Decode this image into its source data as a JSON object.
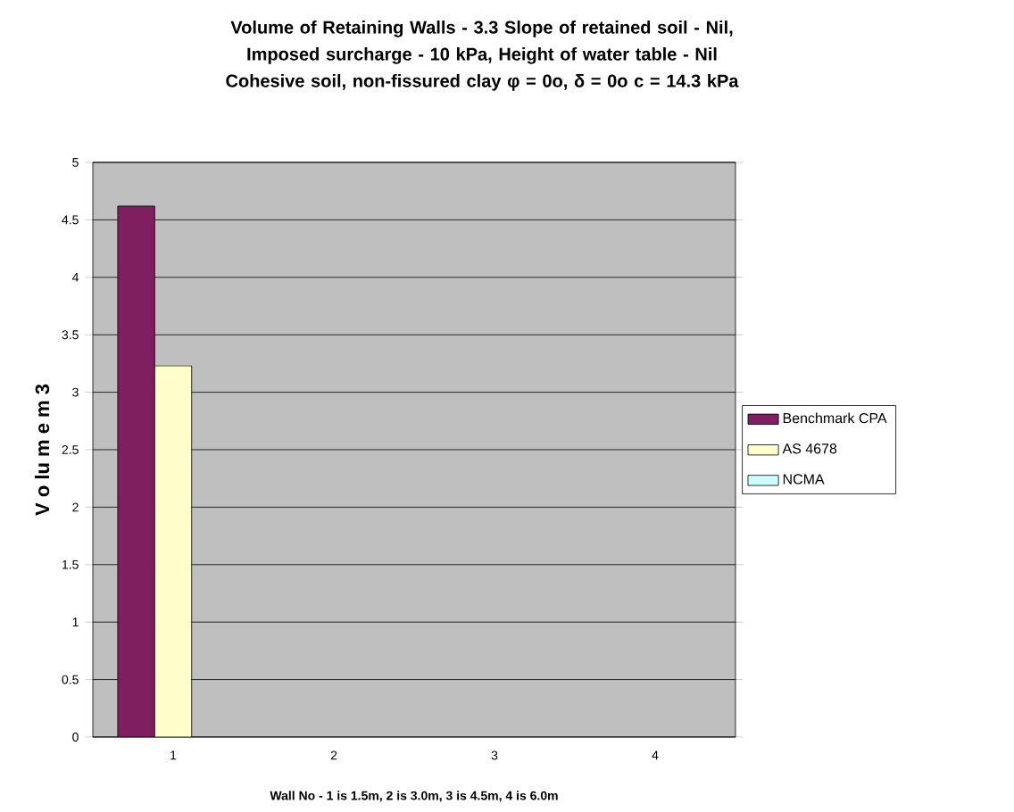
{
  "chart_data": {
    "type": "bar",
    "title": "Volume of  Retaining Walls - 3.3    Slope of retained soil - Nil, Imposed surcharge - 10 kPa,  Height of  water table - Nil    Cohesive soil, non-fissured clay φ = 0o, δ = 0o c = 14.3 kPa",
    "xlabel": "Wall No  -  1 is 1.5m, 2 is 3.0m, 3 is 4.5m, 4 is 6.0m",
    "ylabel": "V o lu m e  m 3",
    "categories": [
      "1",
      "2",
      "3",
      "4"
    ],
    "series": [
      {
        "name": "Benchmark CPA",
        "color": "#7f1f5f",
        "values": [
          4.62,
          null,
          null,
          null
        ]
      },
      {
        "name": "AS 4678",
        "color": "#ffffcc",
        "values": [
          3.23,
          null,
          null,
          null
        ]
      },
      {
        "name": "NCMA",
        "color": "#ccffff",
        "values": [
          null,
          null,
          null,
          null
        ]
      }
    ],
    "ylim": [
      0,
      5
    ],
    "yticks": [
      0,
      0.5,
      1,
      1.5,
      2,
      2.5,
      3,
      3.5,
      4,
      4.5,
      5
    ],
    "grid": "y",
    "legend": "right"
  }
}
